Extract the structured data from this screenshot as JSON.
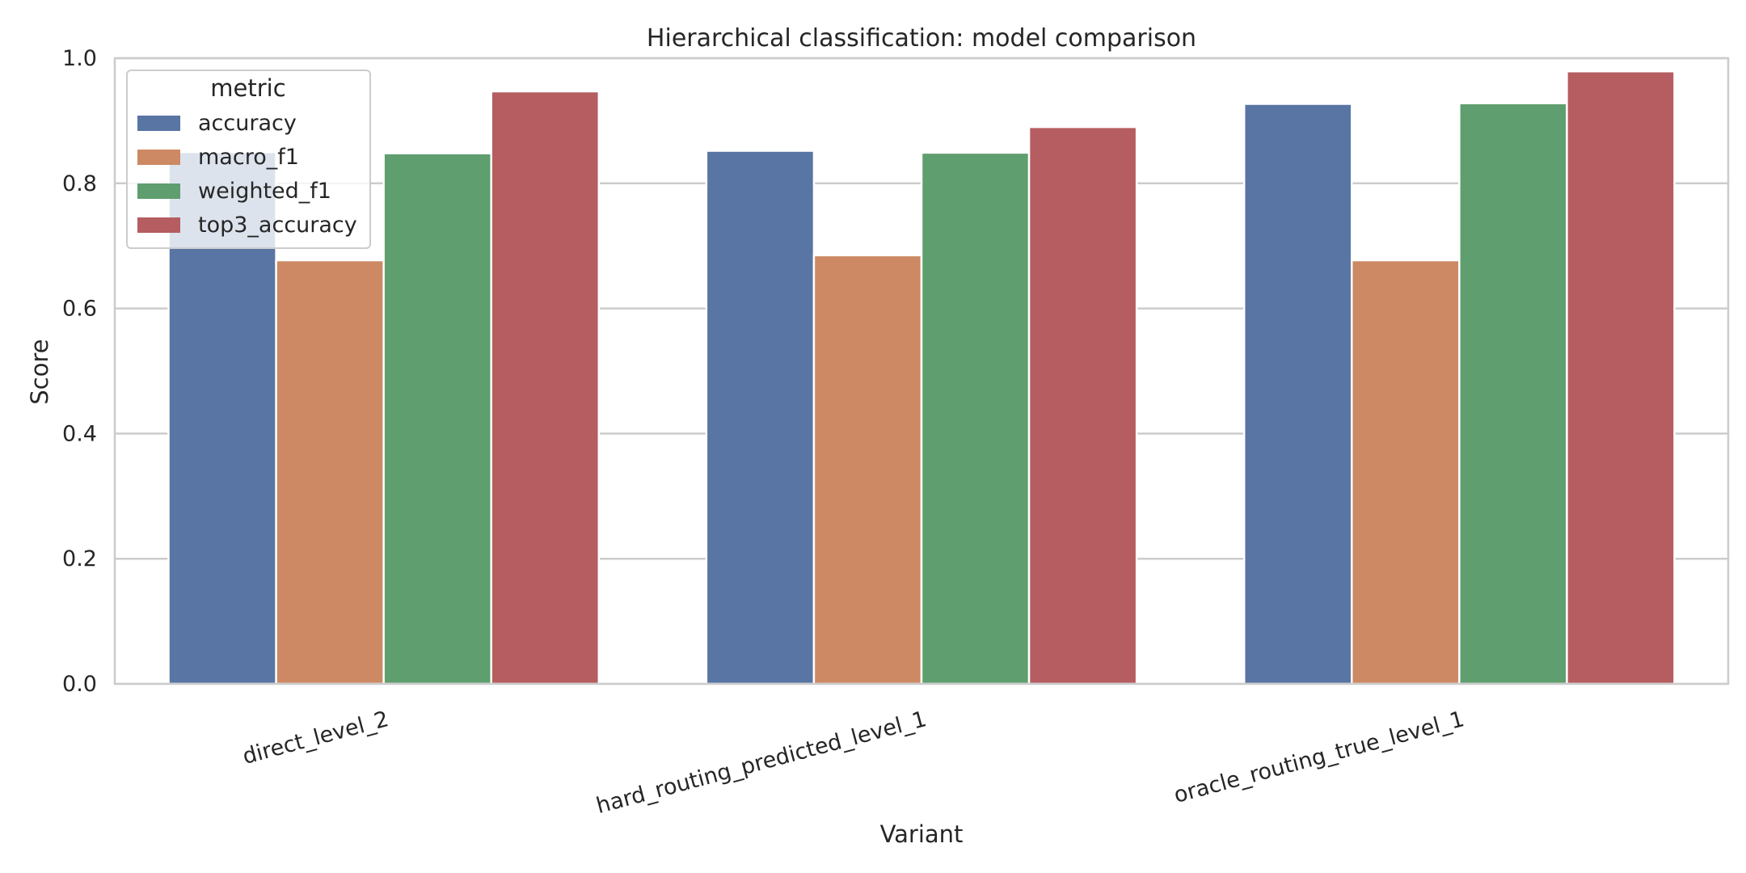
{
  "chart_data": {
    "type": "bar",
    "title": "Hierarchical classification: model comparison",
    "xlabel": "Variant",
    "ylabel": "Score",
    "ylim": [
      0,
      1
    ],
    "yticks": [
      "0.0",
      "0.2",
      "0.4",
      "0.6",
      "0.8",
      "1.0"
    ],
    "grid": true,
    "categories": [
      "direct_level_2",
      "hard_routing_predicted_level_1",
      "oracle_routing_true_level_1"
    ],
    "legend": {
      "title": "metric",
      "placement": "top-left"
    },
    "series": [
      {
        "name": "accuracy",
        "color": "#5875a4",
        "values": [
          0.85,
          0.852,
          0.927
        ]
      },
      {
        "name": "macro_f1",
        "color": "#cc8963",
        "values": [
          0.677,
          0.685,
          0.677
        ]
      },
      {
        "name": "weighted_f1",
        "color": "#5f9e6e",
        "values": [
          0.848,
          0.849,
          0.928
        ]
      },
      {
        "name": "top3_accuracy",
        "color": "#b55d60",
        "values": [
          0.947,
          0.89,
          0.979
        ]
      }
    ]
  }
}
